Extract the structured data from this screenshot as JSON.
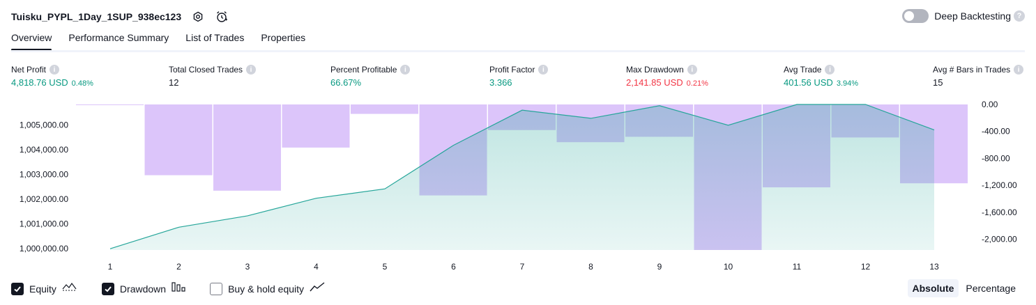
{
  "header": {
    "title": "Tuisku_PYPL_1Day_1SUP_938ec123",
    "settings_icon": "gear-icon",
    "alert_icon": "alarm-clock-icon"
  },
  "deep_backtesting": {
    "label": "Deep Backtesting",
    "enabled": false,
    "help": "?"
  },
  "tabs": [
    {
      "label": "Overview",
      "active": true
    },
    {
      "label": "Performance Summary",
      "active": false
    },
    {
      "label": "List of Trades",
      "active": false
    },
    {
      "label": "Properties",
      "active": false
    }
  ],
  "metrics": [
    {
      "label": "Net Profit",
      "value": "4,818.76 USD",
      "pct": "0.48%",
      "color": "#089981"
    },
    {
      "label": "Total Closed Trades",
      "value": "12",
      "pct": "",
      "color": "#131722"
    },
    {
      "label": "Percent Profitable",
      "value": "66.67%",
      "pct": "",
      "color": "#089981"
    },
    {
      "label": "Profit Factor",
      "value": "3.366",
      "pct": "",
      "color": "#089981"
    },
    {
      "label": "Max Drawdown",
      "value": "2,141.85 USD",
      "pct": "0.21%",
      "color": "#f23645"
    },
    {
      "label": "Avg Trade",
      "value": "401.56 USD",
      "pct": "3.94%",
      "color": "#089981"
    },
    {
      "label": "Avg # Bars in Trades",
      "value": "15",
      "pct": "",
      "color": "#131722"
    }
  ],
  "chart_data": {
    "type": "line",
    "x": [
      1,
      2,
      3,
      4,
      5,
      6,
      7,
      8,
      9,
      10,
      11,
      12,
      13
    ],
    "xlabel": "",
    "left_axis": {
      "ylabel": "",
      "ylim": [
        999950,
        1005830
      ],
      "ticks": [
        "1,000,000.00",
        "1,001,000.00",
        "1,002,000.00",
        "1,003,000.00",
        "1,004,000.00",
        "1,005,000.00"
      ],
      "tick_values": [
        1000000,
        1001000,
        1002000,
        1003000,
        1004000,
        1005000
      ]
    },
    "right_axis": {
      "ylabel": "",
      "ylim": [
        -2160,
        0
      ],
      "ticks": [
        "0.00",
        "-400.00",
        "-800.00",
        "-1,200.00",
        "-1,600.00",
        "-2,000.00"
      ],
      "tick_values": [
        0,
        -400,
        -800,
        -1200,
        -1600,
        -2000
      ]
    },
    "series": [
      {
        "name": "Equity",
        "type": "area",
        "axis": "left",
        "color": "#26a69a",
        "values": [
          1000000,
          1000870,
          1001330,
          1002040,
          1002420,
          1004180,
          1005600,
          1005270,
          1005780,
          1004990,
          1005830,
          1005830,
          1004800
        ]
      },
      {
        "name": "Drawdown",
        "type": "bar",
        "axis": "right",
        "color": "#c9a6f7",
        "values": [
          -10,
          -1050,
          -1280,
          -640,
          -140,
          -1350,
          -380,
          -560,
          -480,
          -2160,
          -1230,
          -490,
          -1170
        ]
      }
    ],
    "grid": false
  },
  "legend": [
    {
      "label": "Equity",
      "checked": true,
      "icon": "equity-line-icon"
    },
    {
      "label": "Drawdown",
      "checked": true,
      "icon": "drawdown-bars-icon"
    },
    {
      "label": "Buy & hold equity",
      "checked": false,
      "icon": "buy-hold-line-icon"
    }
  ],
  "view_mode": {
    "options": [
      "Absolute",
      "Percentage"
    ],
    "selected": "Absolute"
  }
}
